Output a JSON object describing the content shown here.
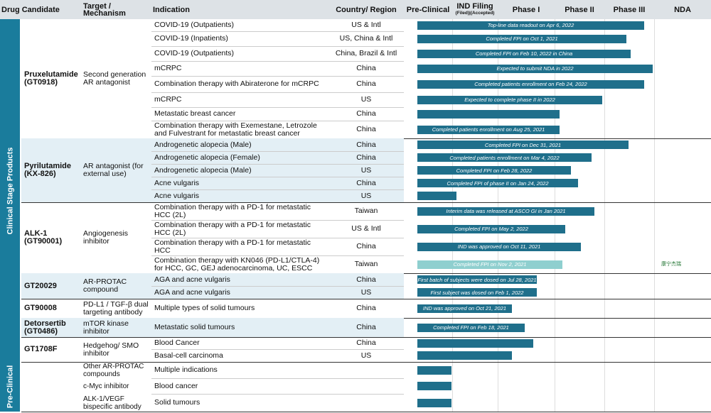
{
  "header": {
    "columns": [
      "Drug Candidate",
      "Target / Mechanism",
      "Indication",
      "Country/ Region",
      "Pre-Clinical",
      "IND Filing",
      "Phase I",
      "Phase II",
      "Phase III",
      "NDA"
    ],
    "ind_sub": "(Filed)|(Accepted)"
  },
  "sections": [
    {
      "label": "Clinical Stage Products",
      "groups": [
        {
          "drug": "Pruxelutamide (GT0918)",
          "target": "Second generation AR antagonist",
          "rows": [
            {
              "indication": "COVID-19 (Outpatients)",
              "country": "US & Intl",
              "note": "Top-line data readout on Apr 6, 2022"
            },
            {
              "indication": "COVID-19 (Inpatients)",
              "country": "US, China & Intl",
              "note": "Completed FPI on Oct 1, 2021"
            },
            {
              "indication": "COVID-19 (Outpatients)",
              "country": "China, Brazil & Intl",
              "note": "Completed FPI on Feb 10, 2022 in China"
            },
            {
              "indication": "mCRPC",
              "country": "China",
              "note": "Expected to submit NDA in 2022"
            },
            {
              "indication": "Combination therapy with Abiraterone for mCRPC",
              "country": "China",
              "note": "Completed patients enrollment on Feb 24, 2022"
            },
            {
              "indication": "mCRPC",
              "country": "US",
              "note": "Expected to complete phase II in 2022"
            },
            {
              "indication": "Metastatic breast cancer",
              "country": "China"
            },
            {
              "indication": "Combination therapy with Exemestane, Letrozole and Fulvestrant for metastatic breast cancer",
              "country": "China",
              "note": "Completed patients enrollment on Aug 25, 2021"
            }
          ]
        },
        {
          "drug": "Pyrilutamide (KX-826)",
          "target": "AR antagonist (for external use)",
          "rows": [
            {
              "indication": "Androgenetic alopecia (Male)",
              "country": "China",
              "note": "Completed FPI on Dec 31, 2021"
            },
            {
              "indication": "Androgenetic alopecia (Female)",
              "country": "China",
              "note": "Completed patients enrollment on Mar 4, 2022"
            },
            {
              "indication": "Androgenetic alopecia (Male)",
              "country": "US",
              "note": "Completed FPI on Feb 28, 2022"
            },
            {
              "indication": "Acne vulgaris",
              "country": "China",
              "note": "Completed FPI of phase II on Jan 24, 2022"
            },
            {
              "indication": "Acne vulgaris",
              "country": "US"
            }
          ]
        },
        {
          "drug": "ALK-1 (GT90001)",
          "target": "Angiogenesis inhibitor",
          "rows": [
            {
              "indication": "Combination therapy with a PD-1 for metastatic HCC (2L)",
              "country": "Taiwan",
              "note": "Interim data was released at ASCO GI in Jan 2021"
            },
            {
              "indication": "Combination therapy with a PD-1 for metastatic HCC (2L)",
              "country": "US & Intl",
              "note": "Completed FPI on May 2, 2022"
            },
            {
              "indication": "Combination therapy with a PD-1 for metastatic HCC",
              "country": "China",
              "note": "IND was approved on Oct 11, 2021"
            },
            {
              "indication": "Combination therapy with KN046 (PD-L1/CTLA-4) for HCC, GC, GEJ adenocarcinoma, UC, ESCC",
              "country": "Taiwan",
              "note": "Completed FPI on Nov 2, 2021",
              "partner": "康宁杰瑞"
            }
          ]
        },
        {
          "drug": "GT20029",
          "target": "AR-PROTAC compound",
          "rows": [
            {
              "indication": "AGA and acne vulgaris",
              "country": "China",
              "note": "First batch of subjects were dosed on Jul 28, 2021"
            },
            {
              "indication": "AGA and acne vulgaris",
              "country": "US",
              "note": "First subject was dosed on Feb 1, 2022"
            }
          ]
        },
        {
          "drug": "GT90008",
          "target": "PD-L1 / TGF-β dual targeting antibody",
          "rows": [
            {
              "indication": "Multiple types of solid tumours",
              "country": "China",
              "note": "IND was approved on Oct 21, 2021"
            }
          ]
        },
        {
          "drug": "Detorsertib (GT0486)",
          "target": "mTOR kinase inhibitor",
          "rows": [
            {
              "indication": "Metastatic solid tumours",
              "country": "China",
              "note": "Completed FPI on Feb 18, 2021"
            }
          ]
        },
        {
          "drug": "GT1708F",
          "target": "Hedgehog/ SMO inhibitor",
          "rows": [
            {
              "indication": "Blood Cancer",
              "country": "China"
            },
            {
              "indication": "Basal-cell carcinoma",
              "country": "US"
            }
          ]
        }
      ]
    },
    {
      "label": "Pre-Clinical",
      "groups": [
        {
          "rows": [
            {
              "target": "Other AR-PROTAC compounds",
              "indication": "Multiple indications"
            },
            {
              "target": "c-Myc inhibitor",
              "indication": "Blood cancer"
            },
            {
              "target": "ALK-1/VEGF bispecific antibody",
              "indication": "Solid tumours"
            }
          ]
        }
      ]
    }
  ]
}
